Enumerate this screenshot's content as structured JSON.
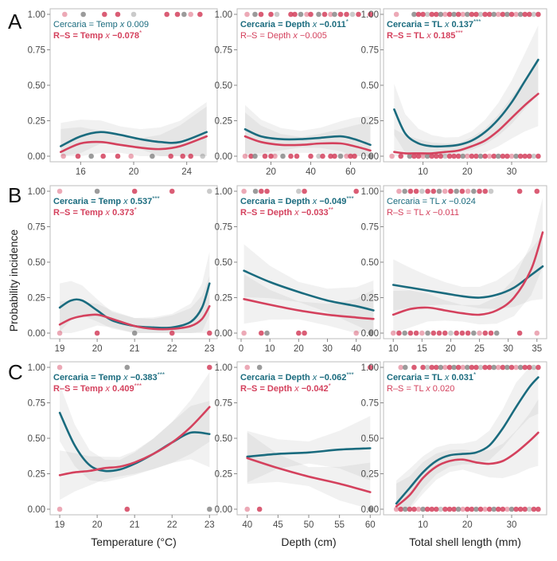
{
  "y_axis_label": "Probability incidence",
  "colors": {
    "cercaria": "#1a6b7e",
    "rs": "#d4415d",
    "band": "#b4b4b4",
    "axis": "#bdbdbd"
  },
  "y_ticks": [
    "0.00",
    "0.25",
    "0.50",
    "0.75",
    "1.00"
  ],
  "chart_data": [
    {
      "type": "scatter",
      "row": "A",
      "xlabel": "",
      "xlim": [
        14,
        26
      ],
      "ylim": [
        0,
        1
      ],
      "x_ticks": [
        16,
        20,
        24
      ],
      "annotations": [
        {
          "series": "cercaria",
          "term": "Temp",
          "coef": "0.009",
          "sig": "",
          "bold": false
        },
        {
          "series": "rs",
          "term": "Temp",
          "coef": "−0.078",
          "sig": "*",
          "bold": true
        }
      ],
      "series": [
        {
          "name": "Cercaria",
          "x": [
            14.5,
            16,
            17.5,
            19,
            20.5,
            22,
            23.5,
            25.5
          ],
          "y": [
            0.07,
            0.14,
            0.17,
            0.15,
            0.12,
            0.1,
            0.1,
            0.17
          ]
        },
        {
          "name": "R–S",
          "x": [
            14.5,
            16,
            17.5,
            19,
            20.5,
            22,
            23.5,
            25.5
          ],
          "y": [
            0.03,
            0.09,
            0.1,
            0.08,
            0.06,
            0.05,
            0.07,
            0.14
          ]
        }
      ],
      "points": {
        "top": [
          14.8,
          16.2,
          17.8,
          18.8,
          20,
          22.5,
          23.3,
          23.8,
          24.3,
          25
        ],
        "bottom": [
          14.7,
          15.8,
          16.8,
          17.7,
          18.8,
          19.8,
          21.4,
          22.8,
          23.7,
          24.3,
          25.2
        ]
      }
    },
    {
      "type": "scatter",
      "row": "A",
      "xlabel": "",
      "xlim": [
        5,
        73
      ],
      "ylim": [
        0,
        1
      ],
      "x_ticks": [
        20,
        40,
        60
      ],
      "annotations": [
        {
          "series": "cercaria",
          "term": "Depth",
          "coef": "−0.011",
          "sig": "*",
          "bold": true
        },
        {
          "series": "rs",
          "term": "Depth",
          "coef": "−0.005",
          "sig": "",
          "bold": false
        }
      ],
      "series": [
        {
          "name": "Cercaria",
          "x": [
            7,
            15,
            25,
            35,
            45,
            55,
            62,
            70
          ],
          "y": [
            0.19,
            0.14,
            0.12,
            0.12,
            0.13,
            0.14,
            0.12,
            0.08
          ]
        },
        {
          "name": "R–S",
          "x": [
            7,
            15,
            25,
            35,
            45,
            55,
            62,
            70
          ],
          "y": [
            0.14,
            0.1,
            0.08,
            0.08,
            0.09,
            0.09,
            0.07,
            0.04
          ]
        }
      ],
      "points": {
        "top": [
          8,
          12,
          15,
          20,
          23,
          30,
          32,
          35,
          38,
          40,
          44,
          47,
          50,
          52,
          55,
          58,
          61,
          64,
          70
        ],
        "bottom": [
          7,
          10,
          12,
          17,
          20,
          22,
          26,
          30,
          33,
          40,
          44,
          46,
          50,
          52,
          55,
          58,
          60,
          62,
          70
        ]
      }
    },
    {
      "type": "scatter",
      "row": "A",
      "xlabel": "",
      "xlim": [
        2,
        37
      ],
      "ylim": [
        0,
        1
      ],
      "x_ticks": [
        10,
        20,
        30
      ],
      "annotations": [
        {
          "series": "cercaria",
          "term": "TL",
          "coef": "0.137",
          "sig": "***",
          "bold": true
        },
        {
          "series": "rs",
          "term": "TL",
          "coef": "0.185",
          "sig": "***",
          "bold": true
        }
      ],
      "series": [
        {
          "name": "Cercaria",
          "x": [
            3.5,
            6,
            9,
            12,
            15,
            18,
            21,
            24,
            27,
            30,
            33,
            36
          ],
          "y": [
            0.33,
            0.16,
            0.09,
            0.07,
            0.07,
            0.08,
            0.11,
            0.17,
            0.26,
            0.38,
            0.53,
            0.68
          ]
        },
        {
          "name": "R–S",
          "x": [
            3.5,
            6,
            9,
            12,
            15,
            18,
            21,
            24,
            27,
            30,
            33,
            36
          ],
          "y": [
            0.03,
            0.02,
            0.02,
            0.02,
            0.03,
            0.04,
            0.07,
            0.11,
            0.18,
            0.27,
            0.36,
            0.44
          ]
        }
      ],
      "points": {
        "top": [
          4,
          8,
          9,
          10,
          11,
          12,
          13,
          14,
          15,
          16,
          17,
          18,
          19,
          20,
          21,
          22,
          23,
          24,
          25,
          26,
          27,
          28,
          29,
          30,
          31,
          32,
          33,
          34,
          35,
          36
        ],
        "bottom": [
          3,
          5,
          7,
          8,
          9,
          10,
          11,
          12,
          13,
          14,
          15,
          16,
          17,
          18,
          19,
          20,
          21,
          22,
          23,
          24,
          25,
          26,
          27,
          28,
          29,
          30,
          31,
          32,
          33,
          34,
          35,
          36
        ]
      }
    },
    {
      "type": "scatter",
      "row": "B",
      "xlabel": "",
      "xlim": [
        18.85,
        23.1
      ],
      "ylim": [
        0,
        1
      ],
      "x_ticks": [
        19,
        20,
        21,
        22,
        23
      ],
      "annotations": [
        {
          "series": "cercaria",
          "term": "Temp",
          "coef": "0.537",
          "sig": "***",
          "bold": true
        },
        {
          "series": "rs",
          "term": "Temp",
          "coef": "0.373",
          "sig": "*",
          "bold": true
        }
      ],
      "series": [
        {
          "name": "Cercaria",
          "x": [
            19,
            19.3,
            19.6,
            20,
            20.4,
            21,
            21.5,
            22,
            22.5,
            22.8,
            23
          ],
          "y": [
            0.18,
            0.23,
            0.23,
            0.16,
            0.09,
            0.05,
            0.04,
            0.04,
            0.08,
            0.18,
            0.35
          ]
        },
        {
          "name": "R–S",
          "x": [
            19,
            19.3,
            19.6,
            20,
            20.4,
            21,
            21.5,
            22,
            22.5,
            22.8,
            23
          ],
          "y": [
            0.06,
            0.1,
            0.12,
            0.13,
            0.1,
            0.05,
            0.03,
            0.03,
            0.05,
            0.1,
            0.19
          ]
        }
      ],
      "points": {
        "top": [
          19,
          20,
          21,
          22,
          23
        ],
        "bottom": [
          19,
          20,
          21,
          22,
          23
        ]
      }
    },
    {
      "type": "scatter",
      "row": "B",
      "xlabel": "",
      "xlim": [
        0,
        47
      ],
      "ylim": [
        0,
        1
      ],
      "x_ticks": [
        0,
        10,
        20,
        30,
        40
      ],
      "annotations": [
        {
          "series": "cercaria",
          "term": "Depth",
          "coef": "−0.049",
          "sig": "***",
          "bold": true
        },
        {
          "series": "rs",
          "term": "Depth",
          "coef": "−0.033",
          "sig": "**",
          "bold": true
        }
      ],
      "series": [
        {
          "name": "Cercaria",
          "x": [
            1,
            10,
            20,
            30,
            40,
            46
          ],
          "y": [
            0.44,
            0.36,
            0.29,
            0.23,
            0.19,
            0.16
          ]
        },
        {
          "name": "R–S",
          "x": [
            1,
            10,
            20,
            30,
            40,
            46
          ],
          "y": [
            0.24,
            0.2,
            0.16,
            0.13,
            0.11,
            0.1
          ]
        }
      ],
      "points": {
        "top": [
          1,
          5,
          7,
          9,
          20,
          22,
          40
        ],
        "bottom": [
          1,
          7,
          9,
          20,
          22,
          40,
          45
        ]
      }
    },
    {
      "type": "scatter",
      "row": "B",
      "xlabel": "",
      "xlim": [
        9,
        36
      ],
      "ylim": [
        0,
        1
      ],
      "x_ticks": [
        10,
        15,
        20,
        25,
        30,
        35
      ],
      "annotations": [
        {
          "series": "cercaria",
          "term": "TL",
          "coef": "−0.024",
          "sig": "",
          "bold": false
        },
        {
          "series": "rs",
          "term": "TL",
          "coef": "−0.011",
          "sig": "",
          "bold": false
        }
      ],
      "series": [
        {
          "name": "Cercaria",
          "x": [
            10,
            13,
            16,
            19,
            22,
            25,
            28,
            31,
            34,
            36
          ],
          "y": [
            0.34,
            0.32,
            0.3,
            0.28,
            0.26,
            0.25,
            0.27,
            0.32,
            0.41,
            0.47
          ]
        },
        {
          "name": "R–S",
          "x": [
            10,
            13,
            16,
            19,
            22,
            25,
            28,
            31,
            34,
            36
          ],
          "y": [
            0.13,
            0.17,
            0.18,
            0.16,
            0.14,
            0.13,
            0.16,
            0.25,
            0.45,
            0.71
          ]
        }
      ],
      "points": {
        "top": [
          11,
          12,
          13,
          14,
          15,
          16,
          17,
          18,
          19,
          20,
          21,
          22,
          23,
          24,
          25,
          26,
          27,
          32,
          35
        ],
        "bottom": [
          10,
          11,
          12,
          13,
          14,
          15,
          16,
          17,
          18,
          19,
          20,
          21,
          22,
          23,
          24,
          25,
          26,
          27,
          28,
          32,
          35
        ]
      }
    },
    {
      "type": "scatter",
      "row": "C",
      "xlabel": "Temperature (°C)",
      "xlim": [
        18.85,
        23.1
      ],
      "ylim": [
        0,
        1
      ],
      "x_ticks": [
        19,
        20,
        21,
        22,
        23
      ],
      "annotations": [
        {
          "series": "cercaria",
          "term": "Temp",
          "coef": "−0.383",
          "sig": "***",
          "bold": true
        },
        {
          "series": "rs",
          "term": "Temp",
          "coef": "0.409",
          "sig": "***",
          "bold": true
        }
      ],
      "series": [
        {
          "name": "Cercaria",
          "x": [
            19,
            19.4,
            19.8,
            20.2,
            20.6,
            21,
            21.5,
            22,
            22.5,
            23
          ],
          "y": [
            0.68,
            0.45,
            0.31,
            0.27,
            0.28,
            0.32,
            0.39,
            0.47,
            0.54,
            0.53
          ]
        },
        {
          "name": "R–S",
          "x": [
            19,
            19.4,
            19.8,
            20.2,
            20.6,
            21,
            21.5,
            22,
            22.5,
            23
          ],
          "y": [
            0.24,
            0.26,
            0.27,
            0.29,
            0.3,
            0.33,
            0.39,
            0.47,
            0.58,
            0.72
          ]
        }
      ],
      "points": {
        "top": [
          19,
          20.8,
          23
        ],
        "bottom": [
          19,
          20.8,
          23
        ]
      }
    },
    {
      "type": "scatter",
      "row": "C",
      "xlabel": "Depth (cm)",
      "xlim": [
        39,
        61
      ],
      "ylim": [
        0,
        1
      ],
      "x_ticks": [
        40,
        45,
        50,
        55,
        60
      ],
      "annotations": [
        {
          "series": "cercaria",
          "term": "Depth",
          "coef": "−0.062",
          "sig": "***",
          "bold": true
        },
        {
          "series": "rs",
          "term": "Depth",
          "coef": "−0.042",
          "sig": "*",
          "bold": true
        }
      ],
      "series": [
        {
          "name": "Cercaria",
          "x": [
            40,
            45,
            50,
            55,
            60
          ],
          "y": [
            0.37,
            0.39,
            0.4,
            0.42,
            0.43
          ]
        },
        {
          "name": "R–S",
          "x": [
            40,
            45,
            50,
            55,
            60
          ],
          "y": [
            0.36,
            0.29,
            0.23,
            0.18,
            0.12
          ]
        }
      ],
      "points": {
        "top": [
          40,
          42,
          60
        ],
        "bottom": [
          40,
          42,
          60
        ]
      }
    },
    {
      "type": "scatter",
      "row": "C",
      "xlabel": "Total shell length (mm)",
      "xlim": [
        2,
        37
      ],
      "ylim": [
        0,
        1
      ],
      "x_ticks": [
        10,
        20,
        30
      ],
      "annotations": [
        {
          "series": "cercaria",
          "term": "TL",
          "coef": "0.031",
          "sig": "*",
          "bold": true
        },
        {
          "series": "rs",
          "term": "TL",
          "coef": "0.020",
          "sig": "",
          "bold": false
        }
      ],
      "series": [
        {
          "name": "Cercaria",
          "x": [
            4,
            7,
            10,
            13,
            16,
            19,
            22,
            25,
            28,
            31,
            34,
            36
          ],
          "y": [
            0.04,
            0.15,
            0.26,
            0.34,
            0.38,
            0.39,
            0.4,
            0.45,
            0.57,
            0.72,
            0.86,
            0.93
          ]
        },
        {
          "name": "R–S",
          "x": [
            4,
            7,
            10,
            13,
            16,
            19,
            22,
            25,
            28,
            31,
            34,
            36
          ],
          "y": [
            0.02,
            0.1,
            0.22,
            0.3,
            0.34,
            0.35,
            0.33,
            0.32,
            0.34,
            0.4,
            0.48,
            0.54
          ]
        }
      ],
      "points": {
        "top": [
          5,
          6,
          8,
          10,
          11,
          12,
          13,
          14,
          15,
          16,
          17,
          18,
          19,
          20,
          21,
          22,
          23,
          24,
          25,
          26,
          27,
          28,
          29,
          30,
          31,
          32,
          33,
          34,
          35,
          36
        ],
        "bottom": [
          4,
          5,
          6,
          7,
          8,
          9,
          10,
          11,
          12,
          13,
          14,
          15,
          16,
          17,
          18,
          19,
          20,
          21,
          22,
          23,
          24,
          25,
          26,
          27,
          28,
          29,
          30,
          31,
          32,
          33,
          34,
          35,
          36
        ]
      }
    }
  ]
}
